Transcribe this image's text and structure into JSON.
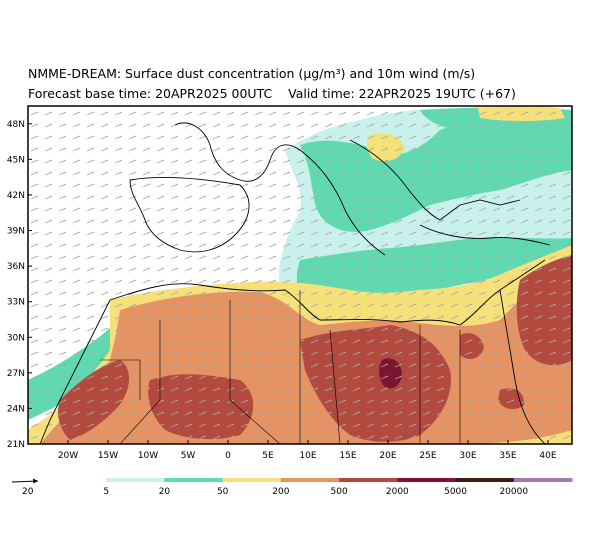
{
  "title": {
    "line1": "NMME-DREAM: Surface dust concentration (µg/m³) and 10m wind (m/s)",
    "line2": "Forecast base time: 20APR2025 00UTC    Valid time: 22APR2025 19UTC (+67)"
  },
  "map": {
    "lat_labels": [
      "48N",
      "45N",
      "42N",
      "39N",
      "36N",
      "33N",
      "30N",
      "27N",
      "24N",
      "21N"
    ],
    "lon_labels": [
      "20W",
      "15W",
      "10W",
      "5W",
      "0",
      "5E",
      "10E",
      "15E",
      "20E",
      "25E",
      "30E",
      "35E",
      "40E"
    ],
    "lat_range": [
      21,
      49.5
    ],
    "lon_range": [
      -25,
      43
    ]
  },
  "wind_key": {
    "label": "20",
    "icon": "arrow-right-icon"
  },
  "colorbar": {
    "labels": [
      "5",
      "20",
      "50",
      "200",
      "500",
      "2000",
      "5000",
      "20000"
    ],
    "colors": [
      "#ffffff",
      "#c9f1ec",
      "#5fd9b0",
      "#f6e07a",
      "#e59362",
      "#b34a3f",
      "#7d1430",
      "#3c1c10",
      "#9e7bb0"
    ]
  }
}
